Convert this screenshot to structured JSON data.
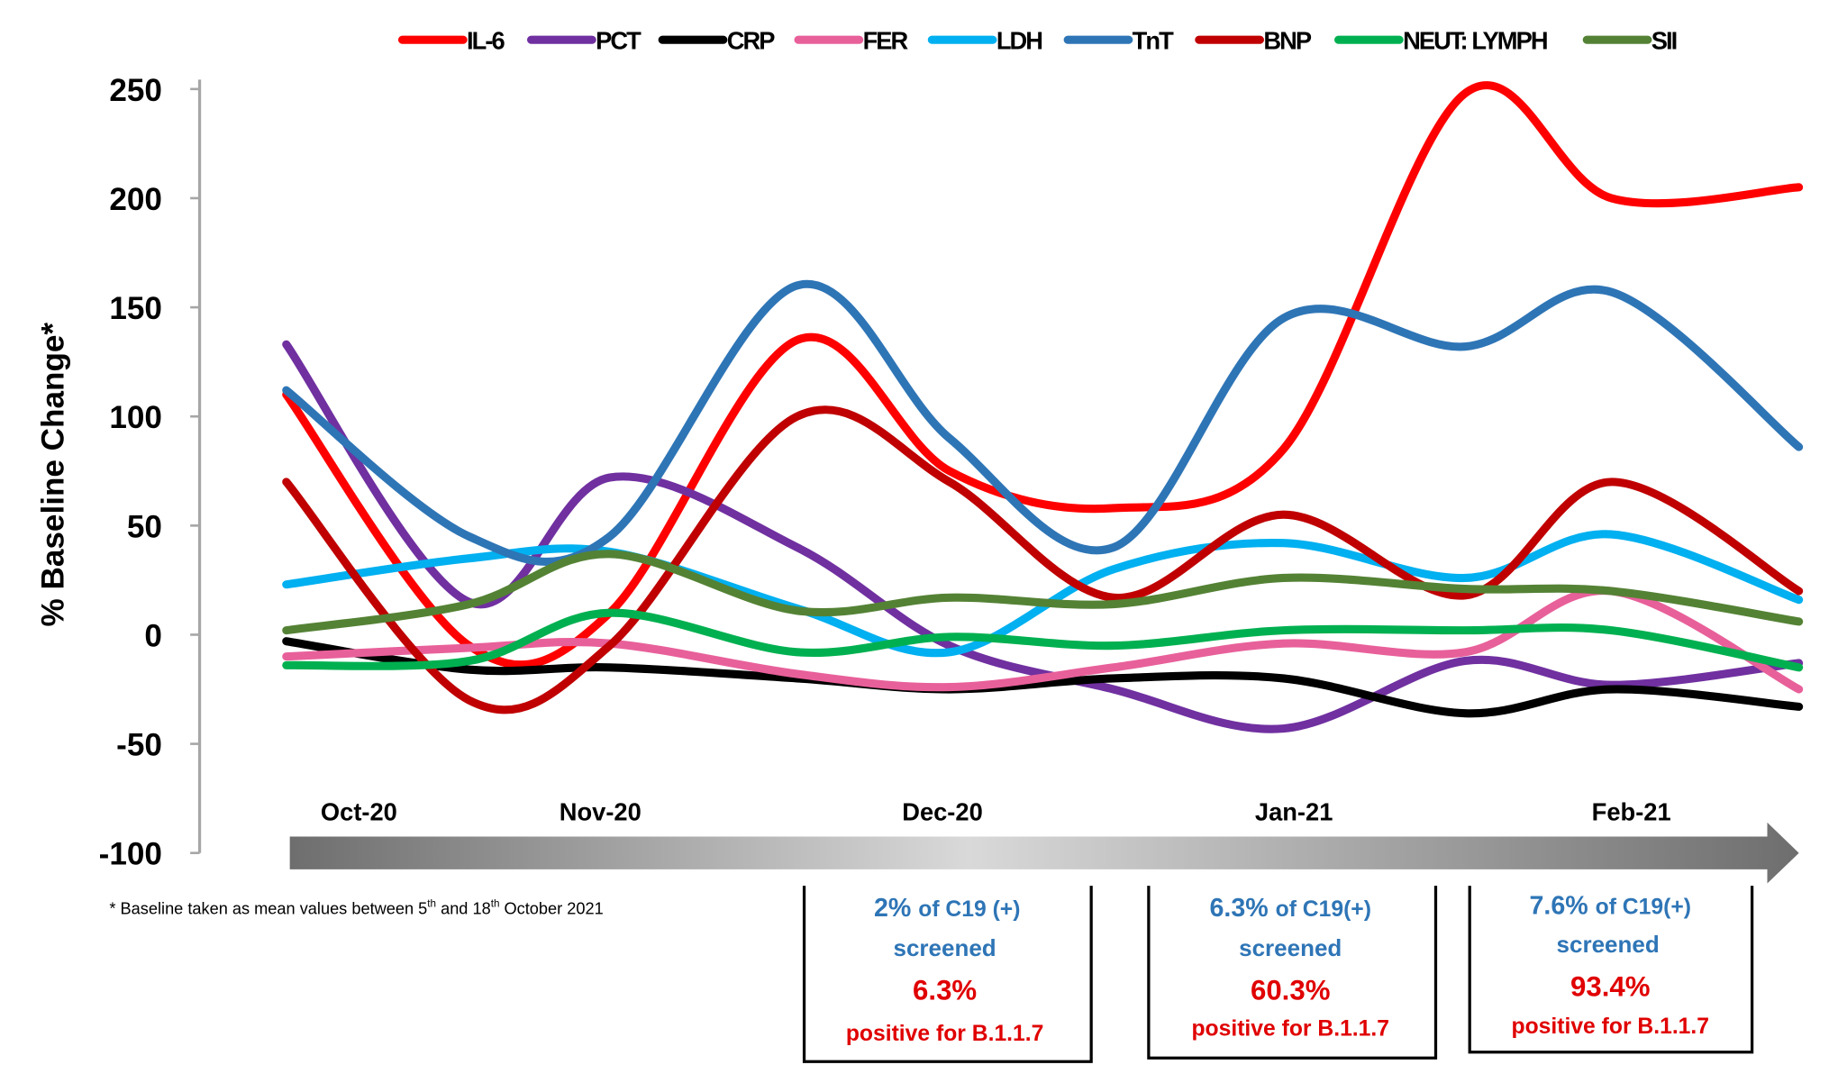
{
  "chart_data": {
    "type": "line",
    "title": "",
    "xlabel": "",
    "ylabel": "% Baseline Change*",
    "ylim": [
      -100,
      250
    ],
    "yticks": [
      "250",
      "200",
      "150",
      "100",
      "50",
      "0",
      "-50",
      "-100"
    ],
    "ytick_values": [
      250,
      200,
      150,
      100,
      50,
      0,
      -50,
      -100
    ],
    "x_labels": [
      "Oct-20",
      "Nov-20",
      "Dec-20",
      "Jan-21",
      "Feb-21"
    ],
    "grid": false,
    "legend_position": "top",
    "smoothed": true,
    "series": [
      {
        "name": "IL-6",
        "color": "#ff0000",
        "values": [
          110,
          -5,
          10,
          135,
          75,
          58,
          85,
          248,
          200,
          205
        ]
      },
      {
        "name": "PCT",
        "color": "#7030a0",
        "values": [
          133,
          15,
          72,
          40,
          -5,
          -25,
          -43,
          -12,
          -23,
          -13
        ]
      },
      {
        "name": "CRP",
        "color": "#000000",
        "values": [
          -3,
          -16,
          -15,
          -20,
          -25,
          -20,
          -20,
          -36,
          -25,
          -33
        ]
      },
      {
        "name": "FER",
        "color": "#e8609a",
        "values": [
          -10,
          -6,
          -4,
          -18,
          -24,
          -15,
          -4,
          -8,
          20,
          -25
        ]
      },
      {
        "name": "LDH",
        "color": "#00b0f0",
        "values": [
          23,
          35,
          38,
          12,
          -8,
          30,
          42,
          26,
          46,
          16
        ]
      },
      {
        "name": "TnT",
        "color": "#2e75b6",
        "values": [
          112,
          45,
          45,
          160,
          90,
          40,
          145,
          132,
          157,
          86
        ]
      },
      {
        "name": "BNP",
        "color": "#c00000",
        "values": [
          70,
          -30,
          -5,
          100,
          70,
          17,
          55,
          18,
          70,
          20
        ]
      },
      {
        "name": "NEUT: LYMPH",
        "color": "#00b050",
        "values": [
          -14,
          -12,
          10,
          -8,
          -1,
          -5,
          2,
          2,
          2,
          -15
        ]
      },
      {
        "name": "SII",
        "color": "#548235",
        "values": [
          2,
          14,
          37,
          11,
          17,
          14,
          26,
          21,
          20,
          6
        ]
      }
    ]
  },
  "footnote": {
    "pre": "* Baseline taken as mean  values between 5",
    "sup1": "th",
    "mid": " and 18",
    "sup2": "th",
    "post": " October 2021"
  },
  "annotations": [
    {
      "screened_pct": "2% ",
      "screened_of": "of C19 (+)",
      "screened": "screened",
      "positive_pct": "6.3%",
      "positive": "positive for B.1.1.7"
    },
    {
      "screened_pct": "6.3% ",
      "screened_of": "of C19(+)",
      "screened": "screened",
      "positive_pct": "60.3%",
      "positive": "positive for B.1.1.7"
    },
    {
      "screened_pct": "7.6% ",
      "screened_of": "of C19(+)",
      "screened": "screened",
      "positive_pct": "93.4%",
      "positive": "positive for B.1.1.7"
    }
  ]
}
